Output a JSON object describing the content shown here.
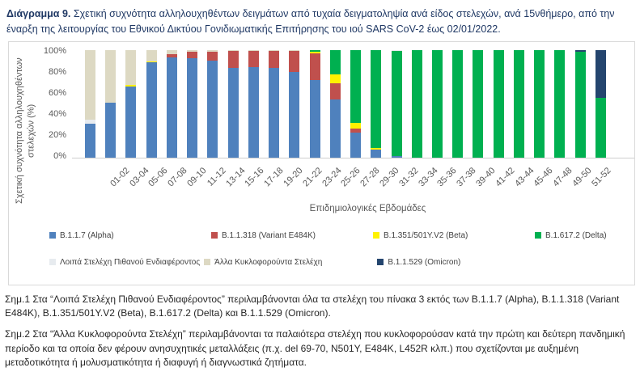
{
  "title": {
    "prefix": "Διάγραμμα 9.",
    "text": " Σχετική συχνότητα αλληλουχηθέντων δειγμάτων από τυχαία δειγματοληψία ανά είδος στελεχών, ανά 15νθήμερο, από την έναρξη της λειτουργίας του Εθνικού Δικτύου Γονιδιωματικής Επιτήρησης του ιού SARS CoV-2 έως 02/01/2022."
  },
  "chart_data": {
    "type": "bar",
    "variant": "stacked-100-percent",
    "title": "",
    "xlabel": "Επιδημιολογικές Εβδομάδες",
    "ylabel": "Σχετική συχνότητα αλληλουχηθέντων στελεχών (%)",
    "ylim": [
      0,
      100
    ],
    "ytick_labels": [
      "0%",
      "20%",
      "40%",
      "60%",
      "80%",
      "100%"
    ],
    "grid": false,
    "legend_position": "bottom",
    "categories": [
      "01-02",
      "03-04",
      "05-06",
      "07-08",
      "09-10",
      "11-12",
      "13-14",
      "15-16",
      "17-18",
      "19-20",
      "21-22",
      "23-24",
      "25-26",
      "27-28",
      "29-30",
      "31-32",
      "33-34",
      "35-36",
      "37-38",
      "39-40",
      "41-42",
      "43-44",
      "45-46",
      "47-48",
      "49-50",
      "51-52"
    ],
    "series": [
      {
        "name": "B.1.1.7 (Alpha)",
        "color": "#4F81BD",
        "values": [
          31,
          51,
          66,
          88,
          93,
          92,
          90,
          83,
          84,
          83,
          79,
          72,
          54,
          23,
          7,
          1,
          0,
          0,
          0,
          0,
          0,
          0,
          0,
          0,
          0,
          0
        ]
      },
      {
        "name": "B.1.1.318 (Variant E484K)",
        "color": "#C0504D",
        "values": [
          0,
          0,
          0,
          0,
          3,
          6,
          8,
          16,
          15,
          16,
          20,
          25,
          15,
          4,
          0,
          0,
          0,
          0,
          0,
          0,
          0,
          0,
          0,
          0,
          0,
          0
        ]
      },
      {
        "name": "B.1.351/501Y.V2 (Beta)",
        "color": "#FFF200",
        "values": [
          0,
          0,
          1,
          1,
          0,
          0,
          0,
          0,
          0,
          0,
          0,
          1,
          8,
          5,
          2,
          0,
          0,
          0,
          0,
          0,
          0,
          0,
          0,
          0,
          0,
          0
        ]
      },
      {
        "name": "B.1.617.2 (Delta)",
        "color": "#00B050",
        "values": [
          0,
          0,
          0,
          0,
          0,
          0,
          0,
          0,
          0,
          0,
          0,
          2,
          23,
          68,
          91,
          98,
          100,
          100,
          100,
          100,
          100,
          100,
          100,
          100,
          98,
          55
        ]
      },
      {
        "name": "Λοιπά Στελέχη Πιθανού Ενδιαφέροντος",
        "color": "#E7EBEF",
        "values": [
          4,
          0,
          0,
          0,
          0,
          0,
          0,
          0,
          0,
          0,
          0,
          0,
          0,
          0,
          0,
          1,
          0,
          0,
          0,
          0,
          0,
          0,
          0,
          0,
          0,
          0
        ]
      },
      {
        "name": "Άλλα Κυκλοφορούντα Στελέχη",
        "color": "#DDD9C3",
        "values": [
          65,
          49,
          33,
          11,
          4,
          2,
          2,
          1,
          1,
          1,
          1,
          0,
          0,
          0,
          0,
          0,
          0,
          0,
          0,
          0,
          0,
          0,
          0,
          0,
          0,
          0
        ]
      },
      {
        "name": "B.1.1.529 (Omicron)",
        "color": "#24456E",
        "values": [
          0,
          0,
          0,
          0,
          0,
          0,
          0,
          0,
          0,
          0,
          0,
          0,
          0,
          0,
          0,
          0,
          0,
          0,
          0,
          0,
          0,
          0,
          0,
          0,
          2,
          45
        ]
      }
    ],
    "legend_rows": [
      [
        0,
        1,
        2,
        3
      ],
      [
        4,
        5,
        6
      ]
    ]
  },
  "footnotes": [
    "Σημ.1 Στα “Λοιπά Στελέχη Πιθανού Ενδιαφέροντος” περιλαμβάνονται όλα τα στελέχη του πίνακα 3 εκτός των B.1.1.7 (Alpha), B.1.1.318 (Variant E484K), B.1.351/501Y.V2 (Beta), B.1.617.2 (Delta) και B.1.1.529 (Omicron).",
    "Σημ.2 Στα “Άλλα Κυκλοφορούντα Στελέχη” περιλαμβάνονται τα παλαιότερα στελέχη που κυκλοφορούσαν κατά την πρώτη και δεύτερη πανδημική περίοδο και τα οποία δεν φέρουν ανησυχητικές μεταλλάξεις (π.χ. del 69-70, N501Y, E484K, L452R κλπ.) που σχετίζονται με αυξημένη μεταδοτικότητα ή μολυσματικότητα ή διαφυγή ή διαγνωστικά ζητήματα."
  ]
}
